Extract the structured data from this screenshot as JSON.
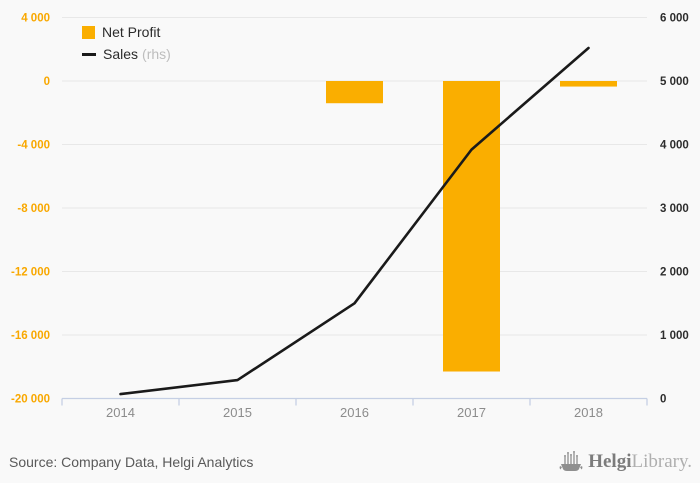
{
  "chart_data": {
    "type": "bar+line",
    "title": "",
    "categories": [
      "2014",
      "2015",
      "2016",
      "2017",
      "2018"
    ],
    "series": [
      {
        "name": "Net Profit",
        "type": "bar",
        "axis": "left",
        "values": [
          null,
          null,
          -1400,
          -18300,
          -350
        ]
      },
      {
        "name": "Sales",
        "suffix": "(rhs)",
        "type": "line",
        "axis": "right",
        "values": [
          70,
          290,
          1500,
          3920,
          5520
        ]
      }
    ],
    "left_axis": {
      "max": 4000,
      "min": -20000,
      "ticks": [
        4000,
        0,
        -4000,
        -8000,
        -12000,
        -16000,
        -20000
      ],
      "labels": [
        "4 000",
        "0",
        "-4 000",
        "-8 000",
        "-12 000",
        "-16 000",
        "-20 000"
      ]
    },
    "right_axis": {
      "max": 6000,
      "min": 0,
      "ticks": [
        6000,
        5000,
        4000,
        3000,
        2000,
        1000,
        0
      ],
      "labels": [
        "6 000",
        "5 000",
        "4 000",
        "3 000",
        "2 000",
        "1 000",
        "0"
      ]
    },
    "grid": true,
    "legend_position": "top-left"
  },
  "legend": {
    "net_profit_label": "Net Profit",
    "sales_label": "Sales",
    "sales_suffix": "(rhs)"
  },
  "footer": {
    "source": "Source: Company Data, Helgi Analytics",
    "logo_bold": "Helgi",
    "logo_light": "Library."
  },
  "colors": {
    "background": "#F9F9F9",
    "grid": "#E8E8E8",
    "axis_line": "#C5CFE4",
    "bar": "#FAAE00",
    "line": "#1A1A1A",
    "left_labels": "#F9A800",
    "right_labels": "#2E2E2E",
    "year_labels": "#8C8C8C"
  }
}
